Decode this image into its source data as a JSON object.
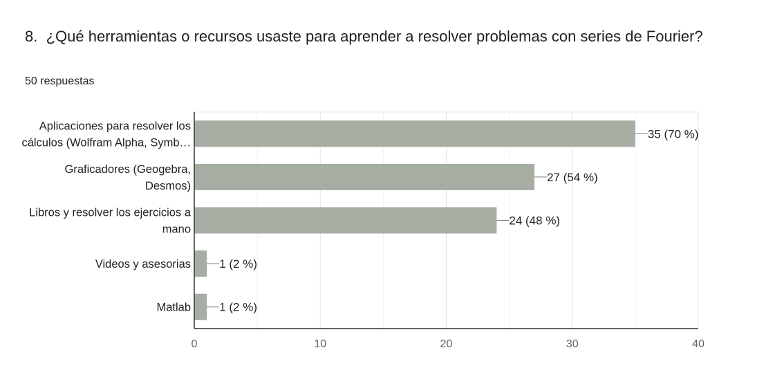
{
  "question": {
    "number": "8.",
    "text": "¿Qué herramientas o recursos usaste para aprender a resolver problemas con series de Fourier?",
    "responses": "50 respuestas"
  },
  "chart_data": {
    "type": "bar",
    "orientation": "horizontal",
    "categories": [
      [
        "Aplicaciones para resolver los",
        "cálculos (Wolfram Alpha, Symb…"
      ],
      [
        "Graficadores (Geogebra,",
        "Desmos)"
      ],
      [
        "Libros y resolver los ejercicios a",
        "mano"
      ],
      [
        "Videos y asesorias"
      ],
      [
        "Matlab"
      ]
    ],
    "values": [
      35,
      27,
      24,
      1,
      1
    ],
    "value_labels": [
      "35 (70 %)",
      "27 (54 %)",
      "24 (48 %)",
      "1 (2 %)",
      "1 (2 %)"
    ],
    "xlim": [
      0,
      40
    ],
    "x_ticks": [
      0,
      10,
      20,
      30,
      40
    ],
    "grid": true,
    "bar_color": "#a6aea4"
  }
}
